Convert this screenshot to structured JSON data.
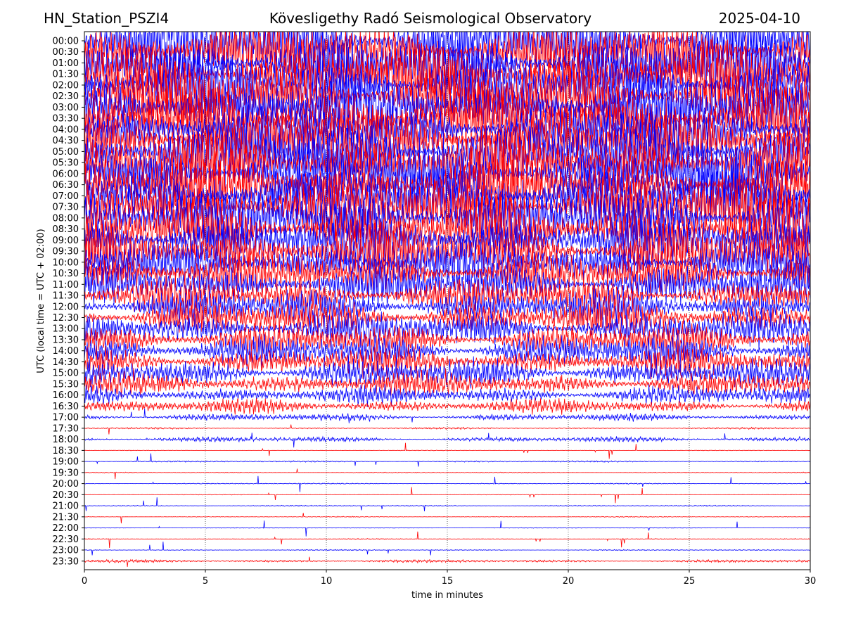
{
  "header": {
    "station": "HN_Station_PSZI4",
    "observatory": "Kövesligethy Radó Seismological Observatory",
    "date": "2025-04-10"
  },
  "chart_data": {
    "type": "line",
    "title": "Kövesligethy Radó Seismological Observatory",
    "xlabel": "time in minutes",
    "ylabel": "UTC (local time = UTC + 02:00)",
    "xlim": [
      0,
      30
    ],
    "xticks": [
      "0",
      "5",
      "10",
      "15",
      "20",
      "25",
      "30"
    ],
    "grid": "vertical dotted at 5-minute intervals",
    "colors": {
      "blue": "#0000ff",
      "red": "#ff0000"
    },
    "row_labels": [
      "00:00",
      "00:30",
      "01:00",
      "01:30",
      "02:00",
      "02:30",
      "03:00",
      "03:30",
      "04:00",
      "04:30",
      "05:00",
      "05:30",
      "06:00",
      "06:30",
      "07:00",
      "07:30",
      "08:00",
      "08:30",
      "09:00",
      "09:30",
      "10:00",
      "10:30",
      "11:00",
      "11:30",
      "12:00",
      "12:30",
      "13:00",
      "13:30",
      "14:00",
      "14:30",
      "15:00",
      "15:30",
      "16:00",
      "16:30",
      "17:00",
      "17:30",
      "18:00",
      "18:30",
      "19:00",
      "19:30",
      "20:00",
      "20:30",
      "21:00",
      "21:30",
      "22:00",
      "22:30",
      "23:00",
      "23:30"
    ],
    "row_colors": [
      "blue",
      "red",
      "blue",
      "red",
      "blue",
      "red",
      "blue",
      "red",
      "blue",
      "red",
      "blue",
      "red",
      "blue",
      "red",
      "blue",
      "red",
      "blue",
      "red",
      "blue",
      "red",
      "blue",
      "red",
      "blue",
      "red",
      "blue",
      "red",
      "blue",
      "red",
      "blue",
      "red",
      "blue",
      "red",
      "blue",
      "red",
      "blue",
      "red",
      "blue",
      "red",
      "blue",
      "red",
      "blue",
      "red",
      "blue",
      "red",
      "blue",
      "red",
      "blue",
      "red"
    ],
    "amplitude_in_row_spacings": [
      3.2,
      3.2,
      3.2,
      3.2,
      3.2,
      3.2,
      3.2,
      3.2,
      3.2,
      3.2,
      3.2,
      3.2,
      3.2,
      3.2,
      3.2,
      3.2,
      3.2,
      3.0,
      2.8,
      2.6,
      2.4,
      2.2,
      2.0,
      1.8,
      1.8,
      1.8,
      1.7,
      1.6,
      1.6,
      1.5,
      1.4,
      1.2,
      0.9,
      0.7,
      0.35,
      0.08,
      0.25,
      0.03,
      0.07,
      0.04,
      0.05,
      0.03,
      0.05,
      0.04,
      0.03,
      0.04,
      0.05,
      0.14
    ]
  }
}
